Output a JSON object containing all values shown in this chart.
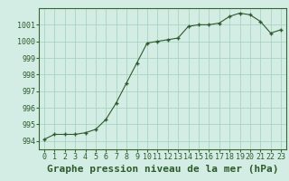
{
  "title": "Graphe pression niveau de la mer (hPa)",
  "x_values": [
    0,
    1,
    2,
    3,
    4,
    5,
    6,
    7,
    8,
    9,
    10,
    11,
    12,
    13,
    14,
    15,
    16,
    17,
    18,
    19,
    20,
    21,
    22,
    23
  ],
  "y_values": [
    994.1,
    994.4,
    994.4,
    994.4,
    994.5,
    994.7,
    995.3,
    996.3,
    997.5,
    998.7,
    999.9,
    1000.0,
    1000.1,
    1000.2,
    1000.9,
    1001.0,
    1001.0,
    1001.1,
    1001.5,
    1001.7,
    1001.6,
    1001.2,
    1000.5,
    1000.7
  ],
  "ylim": [
    993.5,
    1002.0
  ],
  "xlim": [
    -0.5,
    23.5
  ],
  "yticks": [
    994,
    995,
    996,
    997,
    998,
    999,
    1000,
    1001
  ],
  "xticks": [
    0,
    1,
    2,
    3,
    4,
    5,
    6,
    7,
    8,
    9,
    10,
    11,
    12,
    13,
    14,
    15,
    16,
    17,
    18,
    19,
    20,
    21,
    22,
    23
  ],
  "line_color": "#2d5a2d",
  "marker_color": "#2d5a2d",
  "bg_color": "#d4ede4",
  "grid_color": "#a8d4c4",
  "title_fontsize": 8,
  "tick_fontsize": 6,
  "title_color": "#2d5a2d",
  "border_color": "#336633"
}
